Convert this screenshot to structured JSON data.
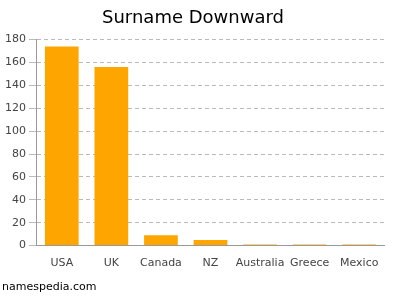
{
  "chart_data": {
    "type": "bar",
    "title": "Surname Downward",
    "categories": [
      "USA",
      "UK",
      "Canada",
      "NZ",
      "Australia",
      "Greece",
      "Mexico"
    ],
    "values": [
      174,
      156,
      9,
      5,
      1,
      1,
      1
    ],
    "color": "#ffa500",
    "ylim": [
      0,
      180
    ],
    "yticks": [
      0,
      20,
      40,
      60,
      80,
      100,
      120,
      140,
      160,
      180
    ],
    "grid": true,
    "source": "namespedia.com"
  }
}
